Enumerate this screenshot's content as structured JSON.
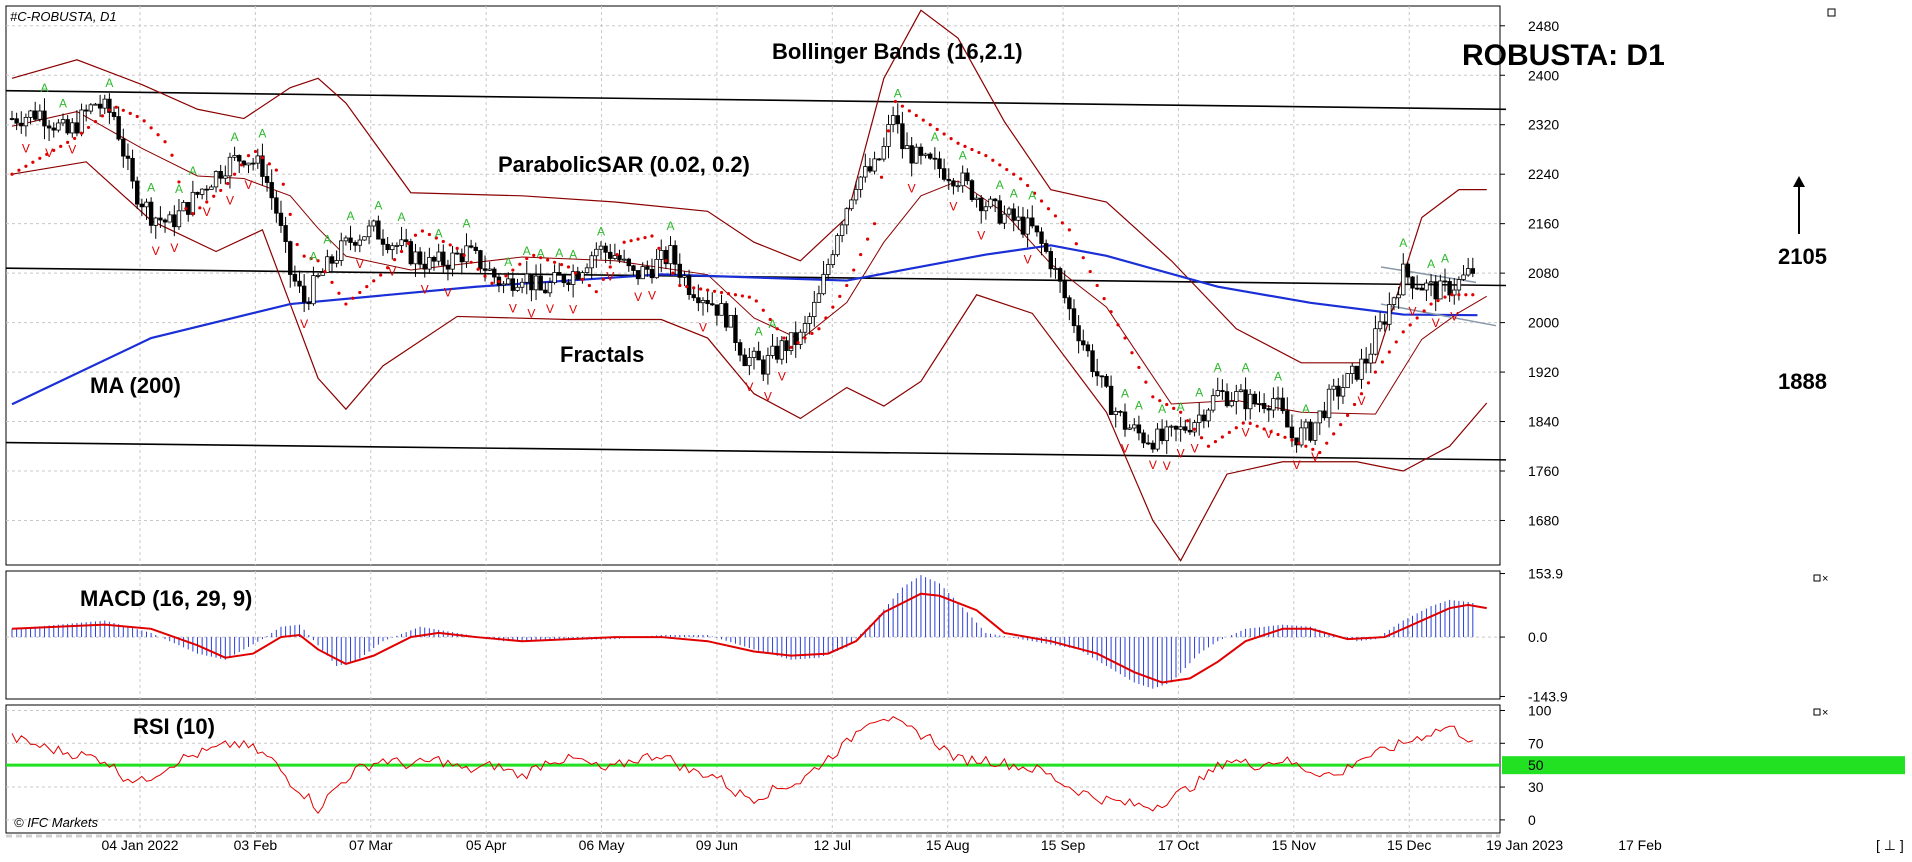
{
  "chart_data": {
    "type": "candlestick",
    "instrument": "#C-ROBUSTA, D1",
    "title": "ROBUSTA: D1",
    "copyright": "© IFC Markets",
    "corner_glyph": "[ ⊥ ]",
    "price_axis": {
      "ticks": [
        1680,
        1760,
        1840,
        1920,
        2000,
        2080,
        2160,
        2240,
        2320,
        2400,
        2480
      ],
      "ylim": [
        1608,
        2512
      ]
    },
    "date_axis": {
      "labels": [
        "04 Jan 2022",
        "03 Feb",
        "07 Mar",
        "05 Apr",
        "06 May",
        "09 Jun",
        "12 Jul",
        "15 Aug",
        "15 Sep",
        "17 Oct",
        "15 Nov",
        "15 Dec",
        "19 Jan 2023",
        "17 Feb"
      ]
    },
    "annotations": {
      "bollinger": "Bollinger Bands (16,2.1)",
      "sar": "ParabolicSAR (0.02, 0.2)",
      "fractals": "Fractals",
      "ma": "MA (200)",
      "level_up": "2105",
      "level_down": "1888"
    },
    "price_path": [
      [
        0,
        2330
      ],
      [
        6,
        2340
      ],
      [
        12,
        2305
      ],
      [
        18,
        2355
      ],
      [
        22,
        2335
      ],
      [
        26,
        2220
      ],
      [
        30,
        2175
      ],
      [
        34,
        2160
      ],
      [
        38,
        2190
      ],
      [
        42,
        2225
      ],
      [
        46,
        2255
      ],
      [
        50,
        2270
      ],
      [
        54,
        2250
      ],
      [
        57,
        2180
      ],
      [
        60,
        2080
      ],
      [
        63,
        2035
      ],
      [
        66,
        2070
      ],
      [
        70,
        2110
      ],
      [
        74,
        2140
      ],
      [
        78,
        2150
      ],
      [
        82,
        2130
      ],
      [
        86,
        2110
      ],
      [
        90,
        2095
      ],
      [
        94,
        2100
      ],
      [
        98,
        2115
      ],
      [
        102,
        2090
      ],
      [
        106,
        2060
      ],
      [
        110,
        2080
      ],
      [
        114,
        2050
      ],
      [
        118,
        2070
      ],
      [
        122,
        2085
      ],
      [
        126,
        2120
      ],
      [
        130,
        2110
      ],
      [
        134,
        2075
      ],
      [
        138,
        2090
      ],
      [
        142,
        2110
      ],
      [
        146,
        2060
      ],
      [
        150,
        2040
      ],
      [
        154,
        2010
      ],
      [
        158,
        1945
      ],
      [
        162,
        1930
      ],
      [
        166,
        1960
      ],
      [
        170,
        1975
      ],
      [
        174,
        2040
      ],
      [
        178,
        2150
      ],
      [
        182,
        2230
      ],
      [
        186,
        2250
      ],
      [
        188,
        2280
      ],
      [
        190,
        2340
      ],
      [
        192,
        2285
      ],
      [
        196,
        2260
      ],
      [
        200,
        2250
      ],
      [
        204,
        2235
      ],
      [
        208,
        2205
      ],
      [
        212,
        2180
      ],
      [
        216,
        2165
      ],
      [
        220,
        2150
      ],
      [
        224,
        2100
      ],
      [
        228,
        2020
      ],
      [
        232,
        1950
      ],
      [
        236,
        1880
      ],
      [
        240,
        1835
      ],
      [
        244,
        1815
      ],
      [
        248,
        1810
      ],
      [
        252,
        1825
      ],
      [
        256,
        1850
      ],
      [
        260,
        1885
      ],
      [
        264,
        1880
      ],
      [
        268,
        1870
      ],
      [
        272,
        1878
      ],
      [
        276,
        1815
      ],
      [
        280,
        1825
      ],
      [
        284,
        1875
      ],
      [
        288,
        1905
      ],
      [
        292,
        1940
      ],
      [
        296,
        2010
      ],
      [
        300,
        2080
      ],
      [
        304,
        2060
      ],
      [
        308,
        2050
      ],
      [
        312,
        2065
      ],
      [
        316,
        2090
      ]
    ],
    "ma200_path": [
      [
        0,
        1868
      ],
      [
        30,
        1975
      ],
      [
        60,
        2030
      ],
      [
        100,
        2058
      ],
      [
        140,
        2078
      ],
      [
        180,
        2068
      ],
      [
        210,
        2110
      ],
      [
        224,
        2125
      ],
      [
        236,
        2108
      ],
      [
        260,
        2058
      ],
      [
        280,
        2032
      ],
      [
        300,
        2013
      ],
      [
        316,
        2012
      ]
    ],
    "bb_upper_path": [
      [
        0,
        2395
      ],
      [
        14,
        2425
      ],
      [
        28,
        2385
      ],
      [
        40,
        2345
      ],
      [
        50,
        2330
      ],
      [
        60,
        2380
      ],
      [
        66,
        2395
      ],
      [
        72,
        2355
      ],
      [
        86,
        2210
      ],
      [
        110,
        2205
      ],
      [
        130,
        2195
      ],
      [
        150,
        2180
      ],
      [
        160,
        2130
      ],
      [
        170,
        2100
      ],
      [
        180,
        2170
      ],
      [
        188,
        2395
      ],
      [
        196,
        2505
      ],
      [
        204,
        2460
      ],
      [
        214,
        2325
      ],
      [
        224,
        2215
      ],
      [
        236,
        2195
      ],
      [
        250,
        2100
      ],
      [
        264,
        1990
      ],
      [
        278,
        1935
      ],
      [
        294,
        1935
      ],
      [
        304,
        2170
      ],
      [
        312,
        2215
      ],
      [
        318,
        2215
      ]
    ],
    "bb_lower_path": [
      [
        0,
        2240
      ],
      [
        16,
        2260
      ],
      [
        30,
        2165
      ],
      [
        44,
        2115
      ],
      [
        54,
        2150
      ],
      [
        60,
        2030
      ],
      [
        66,
        1910
      ],
      [
        72,
        1860
      ],
      [
        80,
        1930
      ],
      [
        96,
        2010
      ],
      [
        120,
        2005
      ],
      [
        140,
        2005
      ],
      [
        150,
        1975
      ],
      [
        160,
        1885
      ],
      [
        170,
        1845
      ],
      [
        180,
        1895
      ],
      [
        188,
        1865
      ],
      [
        196,
        1905
      ],
      [
        208,
        2045
      ],
      [
        220,
        2015
      ],
      [
        236,
        1855
      ],
      [
        246,
        1680
      ],
      [
        252,
        1615
      ],
      [
        262,
        1755
      ],
      [
        274,
        1775
      ],
      [
        290,
        1775
      ],
      [
        300,
        1760
      ],
      [
        310,
        1800
      ],
      [
        318,
        1870
      ]
    ],
    "sar_path": [
      [
        0,
        2240
      ],
      [
        14,
        2300
      ],
      [
        22,
        2350
      ],
      [
        28,
        2330
      ],
      [
        34,
        2285
      ],
      [
        38,
        2170
      ],
      [
        46,
        2220
      ],
      [
        52,
        2280
      ],
      [
        58,
        2240
      ],
      [
        62,
        2110
      ],
      [
        66,
        2100
      ],
      [
        72,
        2030
      ],
      [
        80,
        2080
      ],
      [
        88,
        2150
      ],
      [
        96,
        2120
      ],
      [
        104,
        2060
      ],
      [
        112,
        2110
      ],
      [
        120,
        2090
      ],
      [
        126,
        2050
      ],
      [
        132,
        2130
      ],
      [
        138,
        2140
      ],
      [
        144,
        2060
      ],
      [
        152,
        2050
      ],
      [
        160,
        2040
      ],
      [
        168,
        1960
      ],
      [
        174,
        1990
      ],
      [
        180,
        2060
      ],
      [
        186,
        2160
      ],
      [
        190,
        2360
      ],
      [
        196,
        2330
      ],
      [
        204,
        2290
      ],
      [
        210,
        2270
      ],
      [
        218,
        2230
      ],
      [
        224,
        2180
      ],
      [
        228,
        2150
      ],
      [
        234,
        2060
      ],
      [
        240,
        1975
      ],
      [
        246,
        1880
      ],
      [
        252,
        1855
      ],
      [
        258,
        1800
      ],
      [
        266,
        1840
      ],
      [
        276,
        1810
      ],
      [
        282,
        1790
      ],
      [
        288,
        1850
      ],
      [
        294,
        1920
      ],
      [
        300,
        1985
      ],
      [
        306,
        2030
      ],
      [
        310,
        2045
      ],
      [
        316,
        2045
      ]
    ],
    "channel_lines": [
      {
        "name": "upper-channel",
        "from": [
          0,
          2375
        ],
        "to": [
          1500,
          2345
        ]
      },
      {
        "name": "middle-channel",
        "from": [
          0,
          2088
        ],
        "to": [
          1500,
          2060
        ]
      },
      {
        "name": "lower-channel",
        "from": [
          0,
          1806
        ],
        "to": [
          1500,
          1778
        ]
      }
    ],
    "triangle_lines": [
      {
        "name": "triangle-upper",
        "from": [
          1375,
          2090
        ],
        "to": [
          1470,
          2065
        ]
      },
      {
        "name": "triangle-lower",
        "from": [
          1375,
          2030
        ],
        "to": [
          1490,
          1995
        ]
      }
    ],
    "macd": {
      "label": "MACD (16, 29, 9)",
      "ticks": [
        153.9,
        0.0,
        -143.9
      ],
      "ylim": [
        -150,
        160
      ],
      "hist_path": [
        [
          0,
          20
        ],
        [
          20,
          40
        ],
        [
          30,
          10
        ],
        [
          40,
          -40
        ],
        [
          46,
          -55
        ],
        [
          54,
          -5
        ],
        [
          58,
          25
        ],
        [
          62,
          30
        ],
        [
          66,
          -20
        ],
        [
          70,
          -70
        ],
        [
          74,
          -60
        ],
        [
          80,
          -10
        ],
        [
          88,
          25
        ],
        [
          96,
          10
        ],
        [
          106,
          -10
        ],
        [
          130,
          -5
        ],
        [
          140,
          5
        ],
        [
          150,
          5
        ],
        [
          160,
          -30
        ],
        [
          168,
          -55
        ],
        [
          174,
          -50
        ],
        [
          180,
          -25
        ],
        [
          186,
          40
        ],
        [
          192,
          120
        ],
        [
          196,
          150
        ],
        [
          200,
          130
        ],
        [
          206,
          60
        ],
        [
          210,
          10
        ],
        [
          220,
          -10
        ],
        [
          230,
          -30
        ],
        [
          236,
          -70
        ],
        [
          242,
          -110
        ],
        [
          246,
          -125
        ],
        [
          250,
          -110
        ],
        [
          256,
          -40
        ],
        [
          260,
          -10
        ],
        [
          266,
          20
        ],
        [
          274,
          30
        ],
        [
          280,
          25
        ],
        [
          284,
          10
        ],
        [
          290,
          -10
        ],
        [
          294,
          -5
        ],
        [
          300,
          40
        ],
        [
          306,
          75
        ],
        [
          310,
          90
        ],
        [
          314,
          85
        ],
        [
          318,
          75
        ]
      ],
      "signal_path": [
        [
          0,
          20
        ],
        [
          20,
          30
        ],
        [
          30,
          20
        ],
        [
          40,
          -20
        ],
        [
          46,
          -50
        ],
        [
          52,
          -40
        ],
        [
          58,
          0
        ],
        [
          62,
          5
        ],
        [
          66,
          -30
        ],
        [
          72,
          -65
        ],
        [
          78,
          -45
        ],
        [
          86,
          0
        ],
        [
          92,
          10
        ],
        [
          100,
          0
        ],
        [
          110,
          -10
        ],
        [
          130,
          0
        ],
        [
          140,
          0
        ],
        [
          150,
          -10
        ],
        [
          160,
          -35
        ],
        [
          168,
          -45
        ],
        [
          176,
          -40
        ],
        [
          182,
          -10
        ],
        [
          188,
          60
        ],
        [
          196,
          105
        ],
        [
          200,
          100
        ],
        [
          208,
          65
        ],
        [
          214,
          10
        ],
        [
          224,
          -10
        ],
        [
          234,
          -40
        ],
        [
          242,
          -85
        ],
        [
          248,
          -110
        ],
        [
          254,
          -100
        ],
        [
          260,
          -60
        ],
        [
          266,
          -10
        ],
        [
          274,
          20
        ],
        [
          280,
          20
        ],
        [
          288,
          -5
        ],
        [
          296,
          0
        ],
        [
          304,
          40
        ],
        [
          310,
          70
        ],
        [
          314,
          78
        ],
        [
          318,
          70
        ]
      ]
    },
    "rsi": {
      "label": "RSI (10)",
      "ticks": [
        100,
        70,
        50,
        30,
        0
      ],
      "ylim": [
        -12,
        105
      ],
      "highlight_level": 50,
      "path": [
        [
          0,
          75
        ],
        [
          8,
          65
        ],
        [
          14,
          60
        ],
        [
          20,
          55
        ],
        [
          24,
          40
        ],
        [
          28,
          35
        ],
        [
          32,
          45
        ],
        [
          36,
          55
        ],
        [
          40,
          60
        ],
        [
          44,
          65
        ],
        [
          48,
          70
        ],
        [
          52,
          65
        ],
        [
          56,
          55
        ],
        [
          60,
          35
        ],
        [
          64,
          20
        ],
        [
          66,
          10
        ],
        [
          70,
          30
        ],
        [
          74,
          45
        ],
        [
          80,
          55
        ],
        [
          86,
          50
        ],
        [
          92,
          55
        ],
        [
          98,
          45
        ],
        [
          104,
          50
        ],
        [
          110,
          40
        ],
        [
          116,
          55
        ],
        [
          122,
          55
        ],
        [
          128,
          45
        ],
        [
          134,
          55
        ],
        [
          140,
          60
        ],
        [
          146,
          45
        ],
        [
          152,
          40
        ],
        [
          156,
          25
        ],
        [
          160,
          20
        ],
        [
          166,
          30
        ],
        [
          170,
          35
        ],
        [
          174,
          50
        ],
        [
          180,
          70
        ],
        [
          184,
          90
        ],
        [
          188,
          95
        ],
        [
          192,
          85
        ],
        [
          198,
          75
        ],
        [
          204,
          55
        ],
        [
          210,
          55
        ],
        [
          216,
          50
        ],
        [
          222,
          45
        ],
        [
          228,
          30
        ],
        [
          234,
          20
        ],
        [
          240,
          15
        ],
        [
          246,
          12
        ],
        [
          250,
          20
        ],
        [
          256,
          35
        ],
        [
          262,
          55
        ],
        [
          268,
          50
        ],
        [
          274,
          55
        ],
        [
          280,
          45
        ],
        [
          286,
          40
        ],
        [
          290,
          55
        ],
        [
          294,
          60
        ],
        [
          300,
          70
        ],
        [
          306,
          80
        ],
        [
          310,
          85
        ],
        [
          314,
          75
        ],
        [
          318,
          68
        ]
      ]
    }
  }
}
